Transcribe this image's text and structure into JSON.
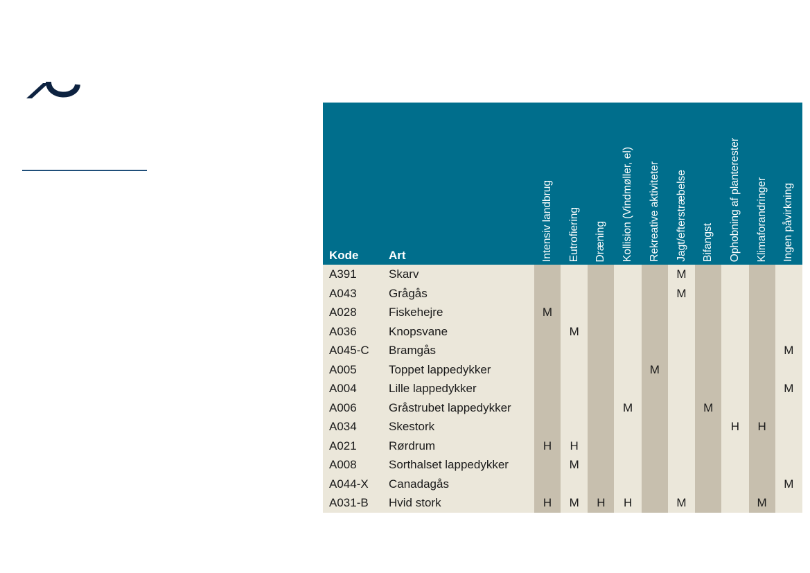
{
  "logo": {
    "name": "aarhus-university-logo",
    "color": "#0d2240"
  },
  "colors": {
    "header_bg": "#006e8c",
    "row_bg": "#ebe7da",
    "shaded_col": "#c7bfae"
  },
  "table": {
    "header": {
      "code": "Kode",
      "species": "Art",
      "columns": [
        "Intensiv landbrug",
        "Eutrofiering",
        "Dræning",
        "Kollision (Vindmøller, el)",
        "Rekreative aktiviteter",
        "Jagt/efterstræbelse",
        "Bifangst",
        "Ophobning af planterester",
        "Klimaforandringer",
        "Ingen påvirkning"
      ]
    },
    "rows": [
      {
        "code": "A391",
        "species": "Skarv",
        "values": [
          "",
          "",
          "",
          "",
          "",
          "M",
          "",
          "",
          "",
          ""
        ]
      },
      {
        "code": "A043",
        "species": "Grågås",
        "values": [
          "",
          "",
          "",
          "",
          "",
          "M",
          "",
          "",
          "",
          ""
        ]
      },
      {
        "code": "A028",
        "species": "Fiskehejre",
        "values": [
          "M",
          "",
          "",
          "",
          "",
          "",
          "",
          "",
          "",
          ""
        ]
      },
      {
        "code": "A036",
        "species": "Knopsvane",
        "values": [
          "",
          "M",
          "",
          "",
          "",
          "",
          "",
          "",
          "",
          ""
        ]
      },
      {
        "code": "A045-C",
        "species": "Bramgås",
        "values": [
          "",
          "",
          "",
          "",
          "",
          "",
          "",
          "",
          "",
          "M"
        ]
      },
      {
        "code": "A005",
        "species": "Toppet lappedykker",
        "values": [
          "",
          "",
          "",
          "",
          "M",
          "",
          "",
          "",
          "",
          ""
        ]
      },
      {
        "code": "A004",
        "species": "Lille lappedykker",
        "values": [
          "",
          "",
          "",
          "",
          "",
          "",
          "",
          "",
          "",
          "M"
        ]
      },
      {
        "code": "A006",
        "species": "Gråstrubet lappedykker",
        "values": [
          "",
          "",
          "",
          "M",
          "",
          "",
          "M",
          "",
          "",
          ""
        ]
      },
      {
        "code": "A034",
        "species": "Skestork",
        "values": [
          "",
          "",
          "",
          "",
          "",
          "",
          "",
          "H",
          "H",
          ""
        ]
      },
      {
        "code": "A021",
        "species": "Rørdrum",
        "values": [
          "H",
          "H",
          "",
          "",
          "",
          "",
          "",
          "",
          "",
          ""
        ]
      },
      {
        "code": "A008",
        "species": "Sorthalset lappedykker",
        "values": [
          "",
          "M",
          "",
          "",
          "",
          "",
          "",
          "",
          "",
          ""
        ]
      },
      {
        "code": "A044-X",
        "species": "Canadagås",
        "values": [
          "",
          "",
          "",
          "",
          "",
          "",
          "",
          "",
          "",
          "M"
        ]
      },
      {
        "code": "A031-B",
        "species": "Hvid stork",
        "values": [
          "H",
          "M",
          "H",
          "H",
          "",
          "M",
          "",
          "",
          "M",
          ""
        ]
      }
    ]
  }
}
